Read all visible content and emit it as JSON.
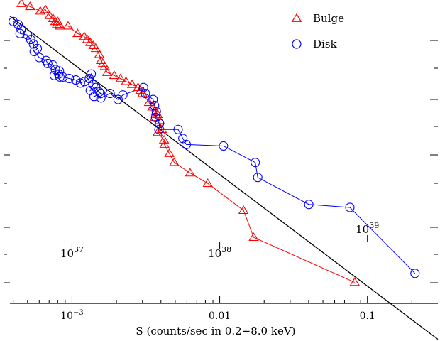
{
  "chart_data": {
    "type": "scatter",
    "xlabel": "S (counts/sec in 0.2−8.0 keV)",
    "ylabel": "",
    "xscale": "log",
    "xlim": [
      0.00038,
      0.3
    ],
    "grid": false,
    "legend_placement": "top-right",
    "x_tick_labels": [
      {
        "value": 0.001,
        "base": "10",
        "exp": "−3"
      },
      {
        "value": 0.01,
        "text": "0.01"
      },
      {
        "value": 0.1,
        "text": "0.1"
      }
    ],
    "luminosity_annotations": [
      {
        "base": "10",
        "exp": "37",
        "s": 0.001
      },
      {
        "base": "10",
        "exp": "38",
        "s": 0.01
      },
      {
        "base": "10",
        "exp": "39",
        "s": 0.1
      }
    ],
    "reference_line": {
      "from": [
        0.00038,
        0.958
      ],
      "to": [
        0.3,
        -0.12
      ]
    },
    "series": [
      {
        "name": "Bulge",
        "marker": "triangle",
        "color": "#ff0000",
        "points": [
          [
            0.000455,
            1.0
          ],
          [
            0.00052,
            0.99
          ],
          [
            0.00061,
            0.975
          ],
          [
            0.00066,
            0.98
          ],
          [
            0.000705,
            0.96
          ],
          [
            0.000745,
            0.95
          ],
          [
            0.00077,
            0.94
          ],
          [
            0.00079,
            0.93
          ],
          [
            0.0008,
            0.94
          ],
          [
            0.00082,
            0.93
          ],
          [
            0.00083,
            0.925
          ],
          [
            0.00094,
            0.925
          ],
          [
            0.00109,
            0.9
          ],
          [
            0.00121,
            0.89
          ],
          [
            0.00127,
            0.88
          ],
          [
            0.00133,
            0.87
          ],
          [
            0.0014,
            0.86
          ],
          [
            0.00145,
            0.85
          ],
          [
            0.00153,
            0.83
          ],
          [
            0.00157,
            0.81
          ],
          [
            0.00162,
            0.8
          ],
          [
            0.00167,
            0.79
          ],
          [
            0.00173,
            0.77
          ],
          [
            0.00193,
            0.76
          ],
          [
            0.00213,
            0.75
          ],
          [
            0.00232,
            0.74
          ],
          [
            0.00255,
            0.73
          ],
          [
            0.0028,
            0.72
          ],
          [
            0.0029,
            0.71
          ],
          [
            0.003,
            0.7
          ],
          [
            0.00332,
            0.67
          ],
          [
            0.0035,
            0.655
          ],
          [
            0.0037,
            0.64
          ],
          [
            0.0038,
            0.63
          ],
          [
            0.00362,
            0.62
          ],
          [
            0.00392,
            0.61
          ],
          [
            0.00406,
            0.58
          ],
          [
            0.0038,
            0.57
          ],
          [
            0.0042,
            0.545
          ],
          [
            0.00422,
            0.53
          ],
          [
            0.00456,
            0.5
          ],
          [
            0.00492,
            0.47
          ],
          [
            0.0063,
            0.435
          ],
          [
            0.0083,
            0.4
          ],
          [
            0.0145,
            0.31
          ],
          [
            0.017,
            0.22
          ],
          [
            0.082,
            0.07
          ]
        ]
      },
      {
        "name": "Disk",
        "marker": "circle",
        "color": "#0000ff",
        "points": [
          [
            0.0004,
            0.94
          ],
          [
            0.000432,
            0.93
          ],
          [
            0.000452,
            0.915
          ],
          [
            0.000445,
            0.9
          ],
          [
            0.0005,
            0.895
          ],
          [
            0.000525,
            0.88
          ],
          [
            0.000548,
            0.865
          ],
          [
            0.000582,
            0.85
          ],
          [
            0.000555,
            0.84
          ],
          [
            0.0006,
            0.82
          ],
          [
            0.000668,
            0.81
          ],
          [
            0.000685,
            0.8
          ],
          [
            0.000742,
            0.795
          ],
          [
            0.000772,
            0.78
          ],
          [
            0.000822,
            0.775
          ],
          [
            0.000758,
            0.76
          ],
          [
            0.000812,
            0.765
          ],
          [
            0.000828,
            0.755
          ],
          [
            0.000868,
            0.755
          ],
          [
            0.000958,
            0.75
          ],
          [
            0.00106,
            0.745
          ],
          [
            0.00114,
            0.735
          ],
          [
            0.00122,
            0.74
          ],
          [
            0.00131,
            0.75
          ],
          [
            0.00135,
            0.765
          ],
          [
            0.00139,
            0.73
          ],
          [
            0.00133,
            0.71
          ],
          [
            0.00145,
            0.72
          ],
          [
            0.00153,
            0.705
          ],
          [
            0.00156,
            0.7
          ],
          [
            0.00141,
            0.69
          ],
          [
            0.00157,
            0.685
          ],
          [
            0.00181,
            0.7
          ],
          [
            0.00205,
            0.68
          ],
          [
            0.00221,
            0.695
          ],
          [
            0.00305,
            0.72
          ],
          [
            0.00314,
            0.7
          ],
          [
            0.00354,
            0.68
          ],
          [
            0.00362,
            0.66
          ],
          [
            0.00372,
            0.64
          ],
          [
            0.00368,
            0.62
          ],
          [
            0.00391,
            0.6
          ],
          [
            0.00388,
            0.58
          ],
          [
            0.00523,
            0.58
          ],
          [
            0.00563,
            0.55
          ],
          [
            0.00594,
            0.53
          ],
          [
            0.0106,
            0.525
          ],
          [
            0.0174,
            0.47
          ],
          [
            0.0181,
            0.42
          ],
          [
            0.0401,
            0.33
          ],
          [
            0.0761,
            0.32
          ],
          [
            0.21,
            0.1
          ]
        ]
      }
    ]
  }
}
